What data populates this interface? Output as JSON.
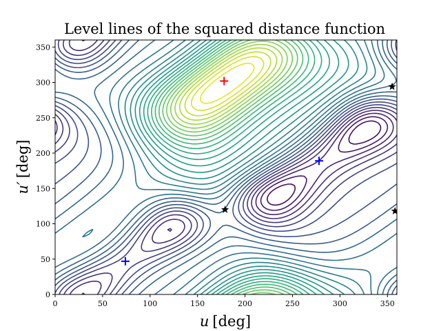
{
  "chart_data": {
    "type": "contour",
    "title": "Level lines of the squared distance function",
    "xlabel_var": "u",
    "xlabel_unit": "[deg]",
    "ylabel_var": "u′",
    "ylabel_unit": "[deg]",
    "xlim": [
      0,
      360
    ],
    "ylim": [
      0,
      360
    ],
    "xticks": [
      0,
      50,
      100,
      150,
      200,
      250,
      300,
      350
    ],
    "yticks": [
      0,
      50,
      100,
      150,
      200,
      250,
      300,
      350
    ],
    "colormap": "viridis",
    "colormap_stops": [
      "#440154",
      "#482878",
      "#3e4989",
      "#31688e",
      "#26828e",
      "#1f9e89",
      "#35b779",
      "#6ece58",
      "#b5de2b",
      "#fde725"
    ],
    "num_levels": 30,
    "markers": [
      {
        "label": "maximum",
        "symbol": "plus",
        "color": "#ff0000",
        "u": 178,
        "u_prime": 302
      },
      {
        "label": "minimum",
        "symbol": "plus",
        "color": "#0000ff",
        "u": 74,
        "u_prime": 47
      },
      {
        "label": "minimum",
        "symbol": "plus",
        "color": "#0000ff",
        "u": 278,
        "u_prime": 189
      },
      {
        "label": "saddle",
        "symbol": "star",
        "color": "#000000",
        "u": 179,
        "u_prime": 120
      },
      {
        "label": "saddle",
        "symbol": "star",
        "color": "#000000",
        "u": 355,
        "u_prime": 294
      },
      {
        "label": "saddle",
        "symbol": "star",
        "color": "#000000",
        "u": 358,
        "u_prime": 118
      }
    ]
  }
}
